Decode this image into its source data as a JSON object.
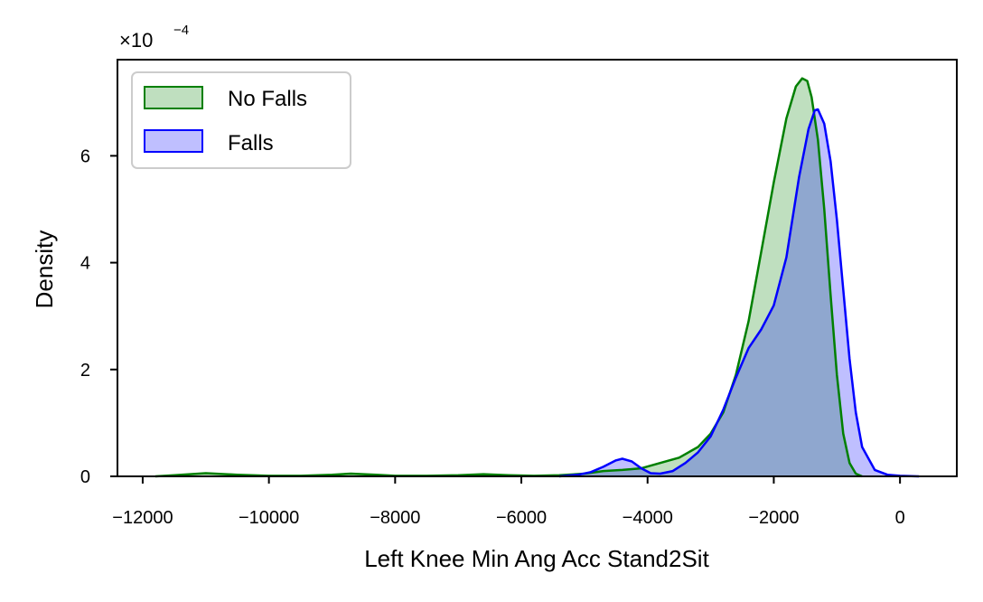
{
  "chart_data": {
    "type": "area",
    "title": "",
    "xlabel": "Left Knee Min Ang Acc Stand2Sit",
    "ylabel": "Density",
    "y_scale_note": "×10",
    "y_scale_exponent": "−4",
    "xlim": [
      -12400,
      900
    ],
    "ylim": [
      0,
      7.8
    ],
    "xticks": [
      -12000,
      -10000,
      -8000,
      -6000,
      -4000,
      -2000,
      0
    ],
    "xtick_labels": [
      "−12000",
      "−10000",
      "−8000",
      "−6000",
      "−4000",
      "−2000",
      "0"
    ],
    "yticks": [
      0,
      2,
      4,
      6
    ],
    "ytick_labels": [
      "0",
      "2",
      "4",
      "6"
    ],
    "grid": false,
    "legend_position": "top-left",
    "series": [
      {
        "name": "No Falls",
        "line_color": "#008000",
        "fill_color": "#008000",
        "fill_opacity": 0.25,
        "x": [
          -11800,
          -11500,
          -11000,
          -10500,
          -10000,
          -9500,
          -9000,
          -8700,
          -8300,
          -8000,
          -7500,
          -7000,
          -6600,
          -6200,
          -5800,
          -5400,
          -5000,
          -4700,
          -4400,
          -4100,
          -3800,
          -3500,
          -3200,
          -3000,
          -2800,
          -2600,
          -2400,
          -2200,
          -2000,
          -1800,
          -1650,
          -1550,
          -1470,
          -1400,
          -1300,
          -1200,
          -1100,
          -1000,
          -900,
          -800,
          -700,
          -600
        ],
        "y": [
          0.0,
          0.02,
          0.06,
          0.03,
          0.01,
          0.01,
          0.03,
          0.05,
          0.03,
          0.01,
          0.01,
          0.02,
          0.04,
          0.02,
          0.01,
          0.02,
          0.05,
          0.1,
          0.12,
          0.15,
          0.25,
          0.35,
          0.55,
          0.8,
          1.2,
          1.9,
          2.9,
          4.2,
          5.5,
          6.7,
          7.3,
          7.45,
          7.4,
          7.1,
          6.3,
          5.0,
          3.4,
          1.9,
          0.8,
          0.25,
          0.05,
          0.0
        ]
      },
      {
        "name": "Falls",
        "line_color": "#0000ff",
        "fill_color": "#0000ff",
        "fill_opacity": 0.25,
        "x": [
          -5400,
          -5100,
          -4900,
          -4700,
          -4500,
          -4400,
          -4250,
          -4100,
          -3950,
          -3800,
          -3600,
          -3400,
          -3200,
          -3000,
          -2800,
          -2600,
          -2400,
          -2200,
          -2000,
          -1800,
          -1600,
          -1450,
          -1350,
          -1300,
          -1200,
          -1100,
          -1000,
          -900,
          -800,
          -700,
          -600,
          -400,
          -200,
          0,
          300
        ],
        "y": [
          0.0,
          0.03,
          0.08,
          0.18,
          0.3,
          0.33,
          0.28,
          0.15,
          0.06,
          0.05,
          0.1,
          0.25,
          0.45,
          0.75,
          1.25,
          1.85,
          2.4,
          2.75,
          3.2,
          4.1,
          5.6,
          6.5,
          6.85,
          6.87,
          6.6,
          5.9,
          4.8,
          3.5,
          2.2,
          1.2,
          0.55,
          0.12,
          0.03,
          0.01,
          0.0
        ]
      }
    ]
  }
}
